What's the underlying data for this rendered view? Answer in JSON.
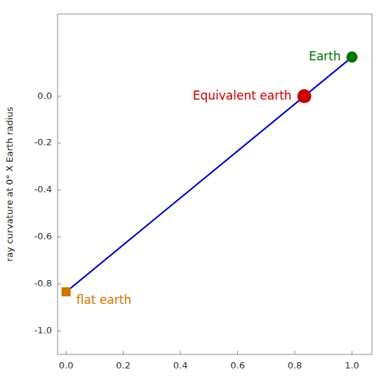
{
  "chart_data": {
    "type": "line",
    "ylabel": "ray curvature at 0° X Earth radius",
    "x": [
      0.0,
      1.0
    ],
    "series": [
      {
        "color": "#0000cc",
        "values": [
          -0.8333,
          0.1667
        ]
      }
    ],
    "annotations": [
      {
        "x": 0.0,
        "y": -0.8333,
        "text": "flat earth",
        "color": "#cc7700",
        "marker": "square"
      },
      {
        "x": 0.8333,
        "y": 0.0,
        "text": "Equivalent earth",
        "color": "#cc0000",
        "marker": "circle"
      },
      {
        "x": 1.0,
        "y": 0.1667,
        "text": "Earth",
        "color": "#007700",
        "marker": "circle"
      }
    ],
    "xlim": [
      -0.03,
      1.07
    ],
    "ylim": [
      -1.1,
      0.35
    ],
    "xticks": [
      {
        "value": 0.0,
        "label": "0.0"
      },
      0.2,
      0.4,
      0.6,
      0.8,
      {
        "value": 1.0,
        "label": "1.0"
      }
    ],
    "yticks": [
      {
        "value": 0.0,
        "label": "0.0"
      },
      -0.2,
      -0.4,
      -0.6,
      -0.8,
      {
        "value": -1.0,
        "label": "-1.0"
      }
    ]
  }
}
